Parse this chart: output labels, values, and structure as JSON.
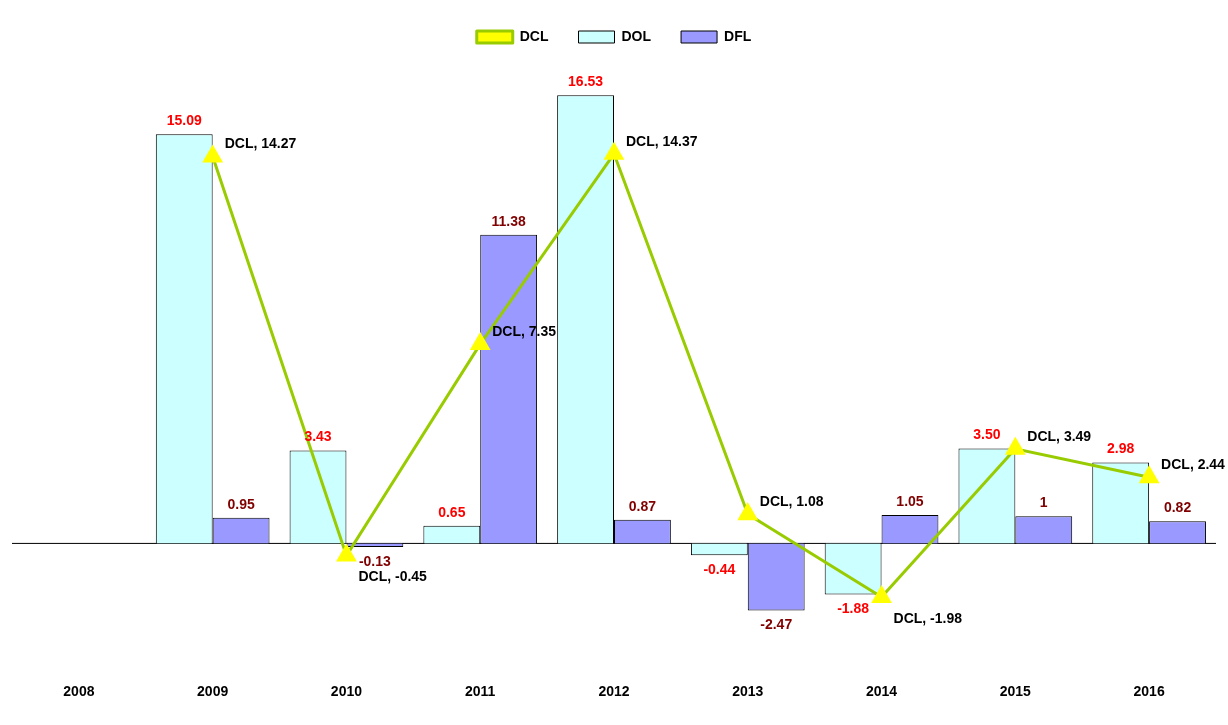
{
  "chart_data": {
    "type": "bar",
    "legend": "top",
    "categories": [
      "2008",
      "2009",
      "2010",
      "2011",
      "2012",
      "2013",
      "2014",
      "2015",
      "2016"
    ],
    "series": [
      {
        "name": "DOL",
        "color": "#ccffff",
        "values": [
          null,
          15.09,
          3.43,
          0.65,
          16.53,
          -0.44,
          -1.88,
          3.5,
          2.98
        ],
        "value_labels": [
          null,
          "15.09",
          "3.43",
          "0.65",
          "16.53",
          "-0.44",
          "-1.88",
          "3.50",
          "2.98"
        ]
      },
      {
        "name": "DFL",
        "color": "#9999ff",
        "values": [
          null,
          0.95,
          -0.13,
          11.38,
          0.87,
          -2.47,
          1.05,
          1,
          0.82
        ],
        "value_labels": [
          null,
          "0.95",
          "-0.13",
          "11.38",
          "0.87",
          "-2.47",
          "1.05",
          "1",
          "0.82"
        ]
      },
      {
        "name": "DCL",
        "type": "line",
        "color": "#99cc00",
        "marker": "triangle",
        "values": [
          null,
          14.27,
          -0.45,
          7.35,
          14.37,
          1.08,
          -1.98,
          3.49,
          2.44
        ],
        "value_labels": [
          null,
          "DCL, 14.27",
          "DCL, -0.45",
          "DCL, 7.35",
          "DCL, 14.37",
          "DCL, 1.08",
          "DCL, -1.98",
          "DCL, 3.49",
          "DCL, 2.44"
        ]
      }
    ]
  }
}
